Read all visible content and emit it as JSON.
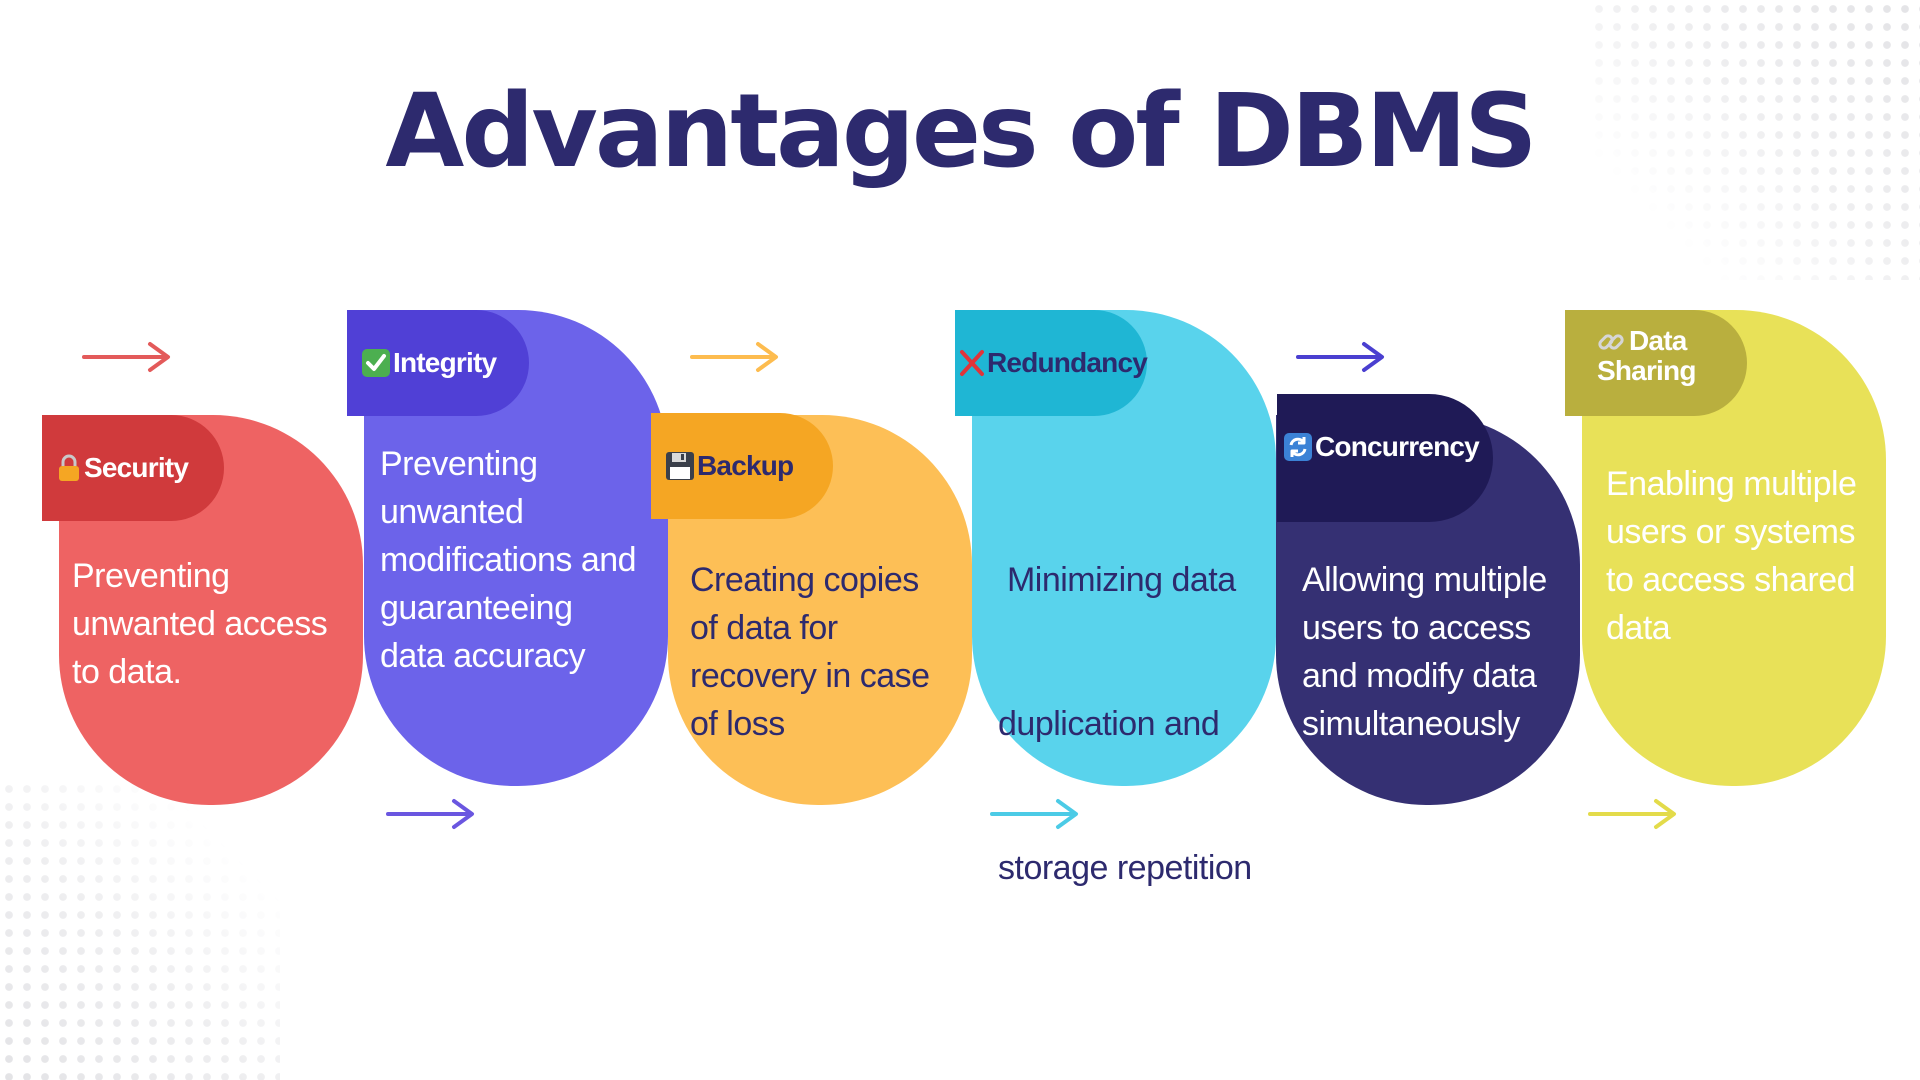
{
  "title": "Advantages of DBMS",
  "colors": {
    "title": "#2d2a6e",
    "security": "#ee6363",
    "security_tab": "#d03a3c",
    "integrity": "#6c63ea",
    "integrity_tab": "#5040d6",
    "backup": "#fdbf56",
    "backup_tab": "#f5a623",
    "redundancy": "#59d3ec",
    "redundancy_tab": "#1fb6d4",
    "concurrency": "#353073",
    "concurrency_tab": "#1f1a56",
    "sharing": "#e8e158",
    "sharing_tab": "#b9af3e"
  },
  "steps": [
    {
      "label": "Security",
      "icon": "lock-icon",
      "lines": [
        "Preventing",
        "unwanted access",
        "to data."
      ]
    },
    {
      "label": "Integrity",
      "icon": "check-icon",
      "lines": [
        "Preventing",
        "unwanted",
        "modifications and",
        "guaranteeing",
        "data accuracy"
      ]
    },
    {
      "label": "Backup",
      "icon": "floppy-disk-icon",
      "lines": [
        "Creating copies",
        "of data for",
        "recovery in case",
        "of loss"
      ]
    },
    {
      "label": "Redundancy",
      "icon": "cross-icon",
      "lines": [
        " Minimizing data",
        "duplication and",
        "storage repetition"
      ]
    },
    {
      "label": "Concurrency",
      "icon": "refresh-icon",
      "lines": [
        "Allowing multiple",
        "users to access",
        "and modify data",
        "simultaneously"
      ]
    },
    {
      "label_lines": [
        "Data",
        "Sharing"
      ],
      "icon": "link-icon",
      "lines": [
        "Enabling multiple",
        "users or systems",
        "to access shared",
        "data"
      ]
    }
  ]
}
